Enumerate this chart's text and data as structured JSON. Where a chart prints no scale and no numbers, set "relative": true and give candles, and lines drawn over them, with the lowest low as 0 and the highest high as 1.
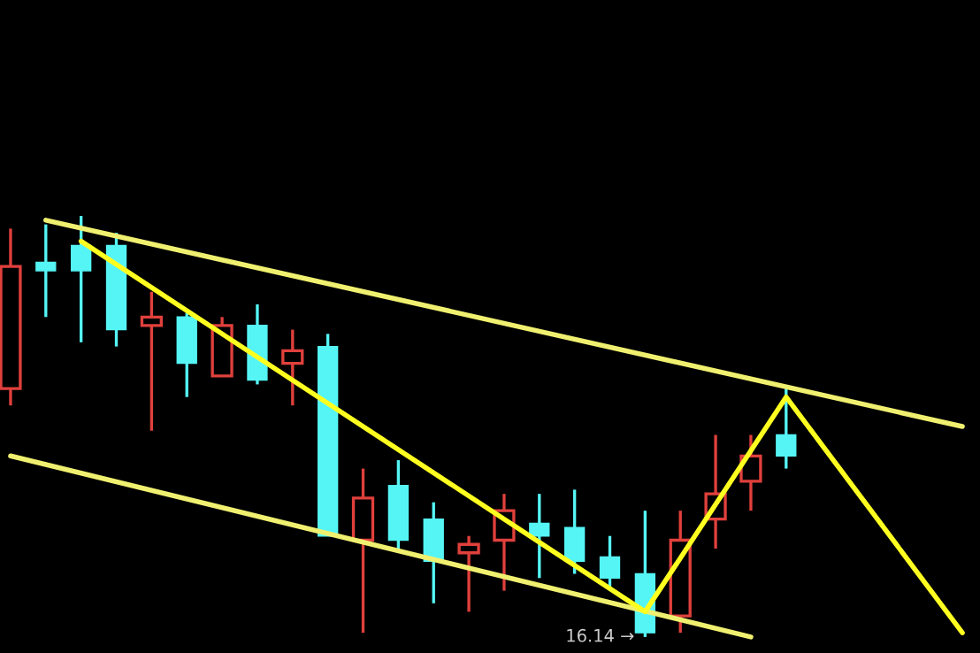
{
  "chart_data": {
    "type": "candlestick",
    "relative": true,
    "categories": [
      null,
      null,
      null,
      null,
      null,
      null,
      null,
      null,
      null,
      null,
      null,
      null,
      null,
      null,
      null,
      null,
      null,
      null,
      null,
      null,
      null,
      null,
      null,
      null,
      null,
      null,
      null,
      null
    ],
    "ohlc": [
      [
        0.59,
        0.97,
        0.55,
        0.88
      ],
      [
        0.89,
        0.98,
        0.76,
        0.87
      ],
      [
        0.93,
        1.0,
        0.7,
        0.87
      ],
      [
        0.93,
        0.96,
        0.69,
        0.73
      ],
      [
        0.74,
        0.82,
        0.49,
        0.76
      ],
      [
        0.76,
        0.77,
        0.57,
        0.65
      ],
      [
        0.62,
        0.76,
        0.62,
        0.74
      ],
      [
        0.74,
        0.79,
        0.6,
        0.61
      ],
      [
        0.65,
        0.73,
        0.55,
        0.68
      ],
      [
        0.69,
        0.72,
        0.24,
        0.24
      ],
      [
        0.23,
        0.4,
        0.01,
        0.33
      ],
      [
        0.36,
        0.42,
        0.21,
        0.23
      ],
      [
        0.28,
        0.32,
        0.08,
        0.18
      ],
      [
        0.2,
        0.24,
        0.06,
        0.22
      ],
      [
        0.23,
        0.34,
        0.11,
        0.3
      ],
      [
        0.27,
        0.34,
        0.14,
        0.24
      ],
      [
        0.26,
        0.35,
        0.15,
        0.18
      ],
      [
        0.19,
        0.24,
        0.11,
        0.14
      ],
      [
        0.15,
        0.3,
        0.0,
        0.01
      ],
      [
        0.05,
        0.3,
        0.01,
        0.23
      ],
      [
        0.28,
        0.48,
        0.21,
        0.34
      ],
      [
        0.37,
        0.48,
        0.3,
        0.43
      ],
      [
        0.48,
        0.59,
        0.4,
        0.43
      ],
      null,
      null,
      null,
      null,
      null
    ],
    "series": [
      {
        "type": "line",
        "color": "#f0f070",
        "values": [
          null,
          0.99,
          null,
          null,
          null,
          null,
          null,
          null,
          null,
          null,
          null,
          null,
          null,
          null,
          null,
          null,
          null,
          null,
          null,
          null,
          null,
          null,
          null,
          null,
          null,
          null,
          null,
          0.5
        ]
      },
      {
        "type": "line",
        "color": "#f0f070",
        "values": [
          0.43,
          null,
          null,
          null,
          null,
          null,
          null,
          null,
          null,
          null,
          null,
          null,
          null,
          null,
          null,
          null,
          null,
          null,
          null,
          null,
          null,
          0.0,
          null,
          null,
          null,
          null,
          null,
          null
        ]
      },
      {
        "type": "line",
        "color": "#ffff20",
        "values": [
          null,
          null,
          0.94,
          null,
          null,
          null,
          null,
          null,
          null,
          null,
          null,
          null,
          null,
          null,
          null,
          null,
          null,
          null,
          0.06,
          null,
          null,
          null,
          0.57,
          null,
          null,
          null,
          null,
          0.01
        ]
      }
    ],
    "annotations": [
      "16.14 →"
    ]
  }
}
